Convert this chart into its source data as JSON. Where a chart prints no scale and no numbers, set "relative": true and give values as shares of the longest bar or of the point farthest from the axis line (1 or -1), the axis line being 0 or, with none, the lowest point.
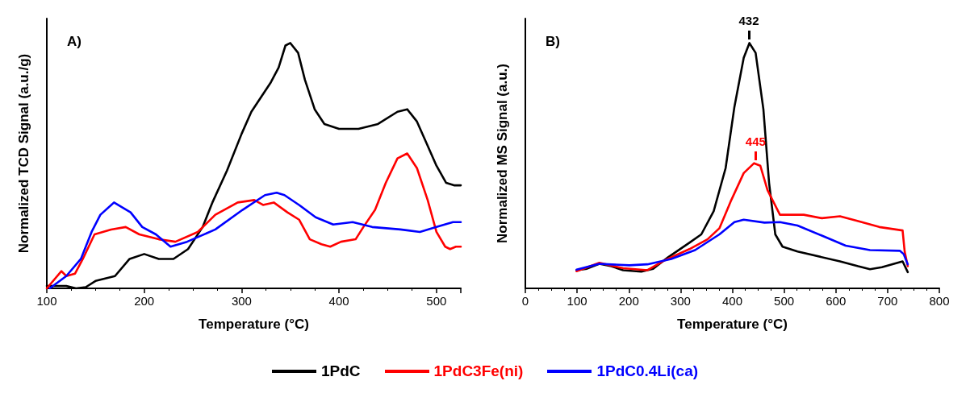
{
  "chart_data": [
    {
      "type": "line",
      "title": "A)",
      "xlabel": "Temperature (°C)",
      "ylabel": "Normalized TCD Signal (a.u./g)",
      "relative": true,
      "xlim": [
        100,
        525
      ],
      "xticks": [
        100,
        200,
        300,
        400,
        500
      ],
      "grid": false,
      "legend": "bottom",
      "marker": "none",
      "line_style": "solid",
      "series": [
        {
          "name": "1PdC",
          "color": "#000000",
          "x": [
            100,
            120,
            130,
            140,
            150,
            170,
            185,
            200,
            215,
            230,
            245,
            260,
            270,
            285,
            300,
            310,
            320,
            330,
            338,
            345,
            350,
            358,
            365,
            375,
            385,
            400,
            420,
            440,
            460,
            470,
            480,
            490,
            500,
            510,
            518,
            525
          ],
          "values": [
            0.01,
            0.01,
            0,
            0.005,
            0.03,
            0.05,
            0.12,
            0.14,
            0.12,
            0.12,
            0.16,
            0.25,
            0.35,
            0.48,
            0.63,
            0.72,
            0.78,
            0.84,
            0.9,
            0.99,
            1.0,
            0.96,
            0.85,
            0.73,
            0.67,
            0.65,
            0.65,
            0.67,
            0.72,
            0.73,
            0.68,
            0.59,
            0.5,
            0.43,
            0.42,
            0.42
          ]
        },
        {
          "name": "1PdC3Fe(ni)",
          "color": "#ff0000",
          "x": [
            100,
            115,
            120,
            129,
            137,
            149,
            166,
            181,
            195,
            215,
            232,
            255,
            273,
            296,
            313,
            322,
            333,
            347,
            359,
            370,
            382,
            391,
            402,
            417,
            425,
            437,
            448,
            460,
            470,
            480,
            491,
            500,
            509,
            514,
            520,
            525
          ],
          "values": [
            0,
            0.07,
            0.05,
            0.06,
            0.12,
            0.22,
            0.24,
            0.25,
            0.22,
            0.2,
            0.19,
            0.23,
            0.3,
            0.35,
            0.36,
            0.34,
            0.35,
            0.31,
            0.28,
            0.2,
            0.18,
            0.17,
            0.19,
            0.2,
            0.25,
            0.32,
            0.43,
            0.53,
            0.55,
            0.49,
            0.36,
            0.23,
            0.17,
            0.16,
            0.17,
            0.17
          ]
        },
        {
          "name": "1PdC0.4Li(ca)",
          "color": "#0000ff",
          "x": [
            103,
            120,
            135,
            146,
            155,
            169,
            186,
            198,
            212,
            227,
            244,
            273,
            301,
            324,
            336,
            344,
            359,
            376,
            394,
            414,
            434,
            463,
            483,
            500,
            517,
            525
          ],
          "values": [
            0,
            0.05,
            0.12,
            0.23,
            0.3,
            0.35,
            0.31,
            0.25,
            0.22,
            0.17,
            0.19,
            0.24,
            0.32,
            0.38,
            0.39,
            0.38,
            0.34,
            0.29,
            0.26,
            0.27,
            0.25,
            0.24,
            0.23,
            0.25,
            0.27,
            0.27
          ]
        }
      ]
    },
    {
      "type": "line",
      "title": "B)",
      "xlabel": "Temperature (°C)",
      "ylabel": "Normalized MS Signal (a.u.)",
      "relative": true,
      "xlim": [
        0,
        800
      ],
      "xticks": [
        0,
        100,
        200,
        300,
        400,
        500,
        600,
        700,
        800
      ],
      "grid": false,
      "legend": "bottom",
      "marker": "none",
      "line_style": "solid",
      "annotations": [
        {
          "text": "432",
          "x": 432,
          "y": 1.0
        },
        {
          "text": "445",
          "x": 445,
          "y": 0.51
        }
      ],
      "series": [
        {
          "name": "1PdC",
          "color": "#000000",
          "x": [
            99,
            119,
            143,
            166,
            189,
            224,
            247,
            276,
            317,
            340,
            364,
            387,
            404,
            422,
            433,
            445,
            460,
            471,
            483,
            497,
            526,
            608,
            643,
            666,
            689,
            729,
            739
          ],
          "values": [
            0.074,
            0.08,
            0.1,
            0.09,
            0.074,
            0.068,
            0.08,
            0.127,
            0.186,
            0.22,
            0.315,
            0.49,
            0.74,
            0.94,
            1.0,
            0.96,
            0.73,
            0.43,
            0.22,
            0.17,
            0.15,
            0.11,
            0.09,
            0.078,
            0.086,
            0.11,
            0.066
          ]
        },
        {
          "name": "1PdC3Fe(ni)",
          "color": "#ff0000",
          "x": [
            99,
            143,
            189,
            236,
            270,
            317,
            352,
            375,
            398,
            422,
            442,
            454,
            468,
            492,
            515,
            538,
            573,
            608,
            643,
            684,
            729,
            733,
            739
          ],
          "values": [
            0.07,
            0.104,
            0.082,
            0.074,
            0.115,
            0.16,
            0.2,
            0.245,
            0.36,
            0.47,
            0.51,
            0.5,
            0.4,
            0.3,
            0.3,
            0.3,
            0.286,
            0.294,
            0.274,
            0.25,
            0.236,
            0.15,
            0.09
          ]
        },
        {
          "name": "1PdC0.4Li(ca)",
          "color": "#0000ff",
          "x": [
            99,
            143,
            201,
            236,
            282,
            328,
            375,
            404,
            422,
            462,
            492,
            526,
            573,
            619,
            666,
            724,
            731,
            739
          ],
          "values": [
            0.076,
            0.1,
            0.094,
            0.098,
            0.12,
            0.156,
            0.22,
            0.27,
            0.28,
            0.268,
            0.27,
            0.256,
            0.215,
            0.174,
            0.156,
            0.153,
            0.14,
            0.098
          ]
        }
      ]
    }
  ]
}
